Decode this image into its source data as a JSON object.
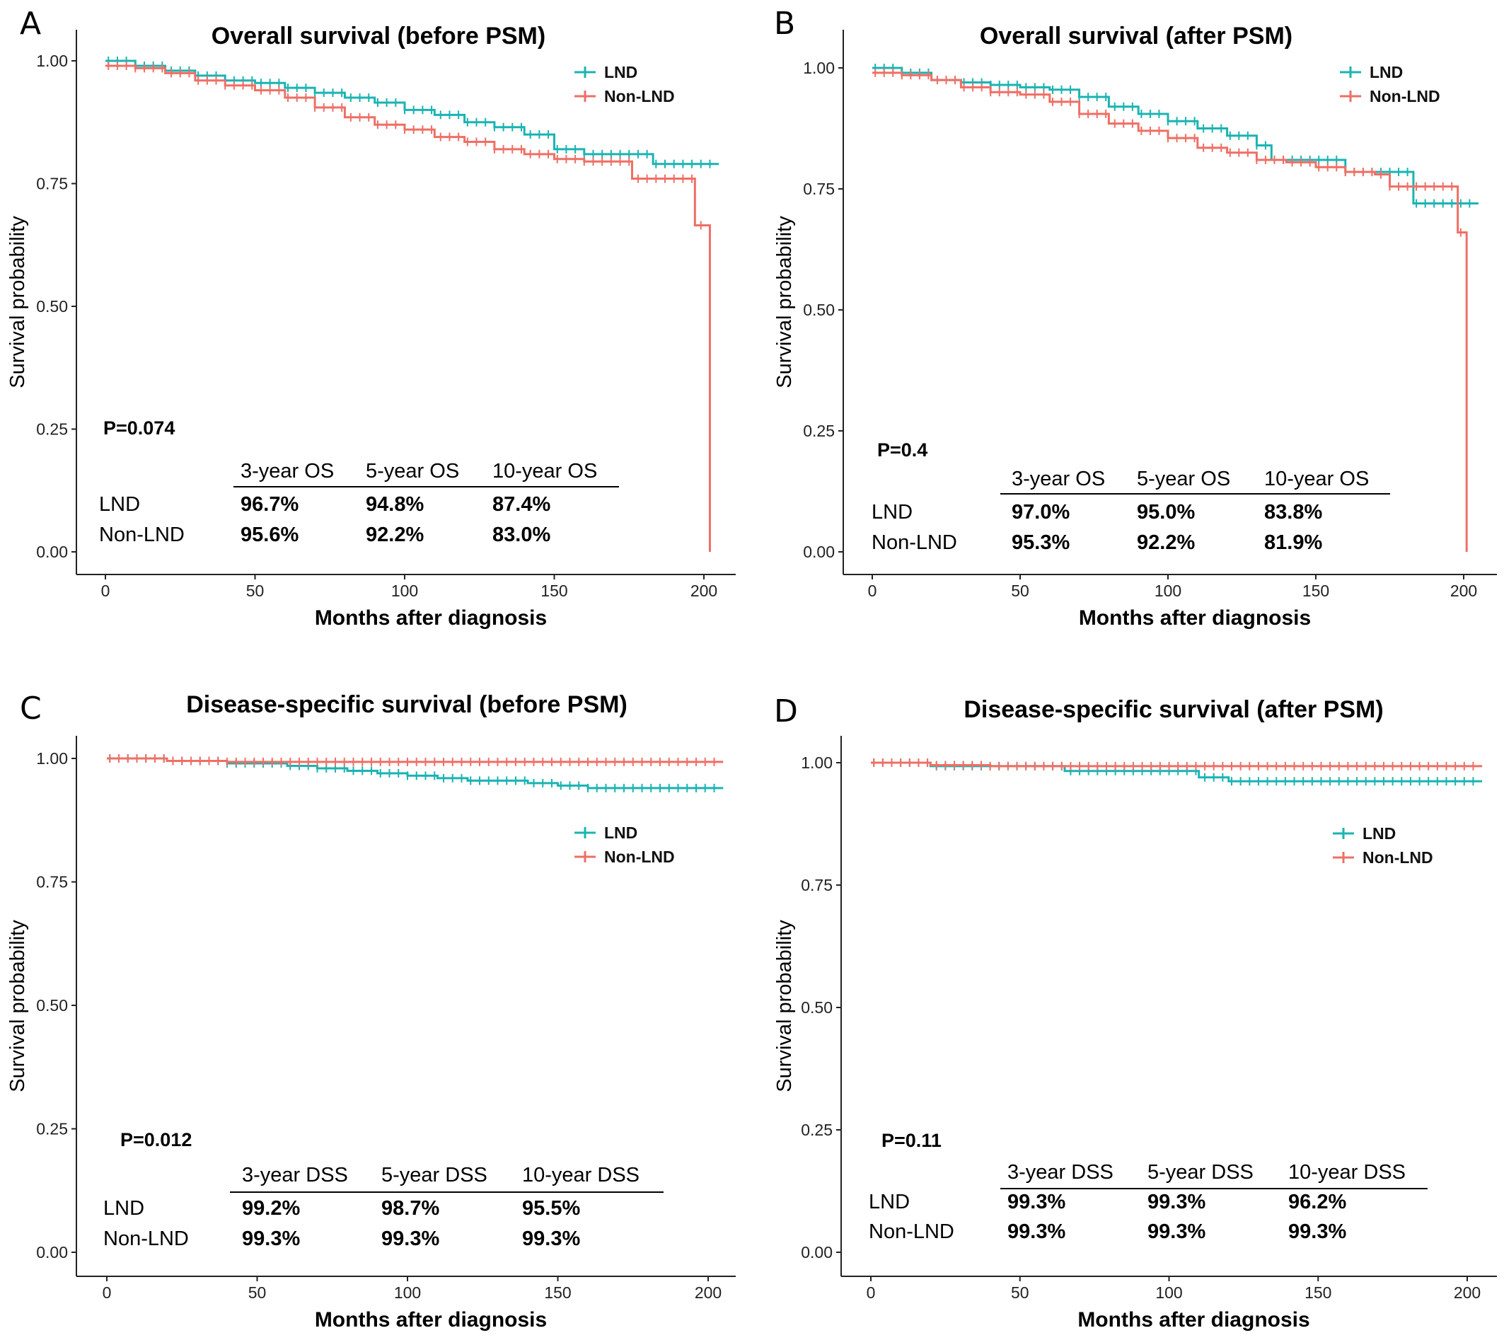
{
  "figure": {
    "panel_count": 4
  },
  "colors": {
    "LND": "#1BB3B3",
    "Non-LND": "#EE6F65"
  },
  "chart_data": [
    {
      "panel": "A",
      "type": "line",
      "title": "Overall survival (before PSM)",
      "xlabel": "Months after diagnosis",
      "ylabel": "Survival probability",
      "xlim": [
        0,
        205
      ],
      "ylim": [
        0,
        1
      ],
      "x_ticks": [
        "0",
        "50",
        "100",
        "150",
        "200"
      ],
      "y_ticks": [
        "0.00",
        "0.25",
        "0.50",
        "0.75",
        "1.00"
      ],
      "legend": [
        "LND",
        "Non-LND"
      ],
      "p_value": "P=0.074",
      "table": {
        "headers": [
          "3-year OS",
          "5-year OS",
          "10-year OS"
        ],
        "rows": [
          {
            "label": "LND",
            "values": [
              "96.7%",
              "94.8%",
              "87.4%"
            ]
          },
          {
            "label": "Non-LND",
            "values": [
              "95.6%",
              "92.2%",
              "83.0%"
            ]
          }
        ]
      },
      "series": [
        {
          "name": "LND",
          "x": [
            0,
            10,
            20,
            30,
            40,
            50,
            60,
            70,
            80,
            90,
            100,
            110,
            120,
            130,
            140,
            150,
            160,
            170,
            183,
            205
          ],
          "y": [
            1.0,
            0.99,
            0.98,
            0.97,
            0.96,
            0.955,
            0.945,
            0.935,
            0.925,
            0.915,
            0.9,
            0.89,
            0.875,
            0.865,
            0.85,
            0.82,
            0.81,
            0.81,
            0.79,
            0.79
          ]
        },
        {
          "name": "Non-LND",
          "x": [
            0,
            10,
            20,
            30,
            40,
            50,
            60,
            70,
            80,
            90,
            100,
            110,
            120,
            130,
            140,
            150,
            160,
            170,
            176,
            190,
            197,
            202,
            202
          ],
          "y": [
            0.99,
            0.985,
            0.975,
            0.96,
            0.95,
            0.94,
            0.925,
            0.905,
            0.885,
            0.87,
            0.86,
            0.845,
            0.835,
            0.82,
            0.81,
            0.8,
            0.795,
            0.795,
            0.76,
            0.76,
            0.665,
            0.665,
            0.0
          ]
        }
      ]
    },
    {
      "panel": "B",
      "type": "line",
      "title": "Overall survival (after PSM)",
      "xlabel": "Months after diagnosis",
      "ylabel": "Survival probability",
      "xlim": [
        0,
        205
      ],
      "ylim": [
        0,
        1
      ],
      "x_ticks": [
        "0",
        "50",
        "100",
        "150",
        "200"
      ],
      "y_ticks": [
        "0.00",
        "0.25",
        "0.50",
        "0.75",
        "1.00"
      ],
      "legend": [
        "LND",
        "Non-LND"
      ],
      "p_value": "P=0.4",
      "table": {
        "headers": [
          "3-year OS",
          "5-year OS",
          "10-year OS"
        ],
        "rows": [
          {
            "label": "LND",
            "values": [
              "97.0%",
              "95.0%",
              "83.8%"
            ]
          },
          {
            "label": "Non-LND",
            "values": [
              "95.3%",
              "92.2%",
              "81.9%"
            ]
          }
        ]
      },
      "series": [
        {
          "name": "LND",
          "x": [
            0,
            10,
            20,
            30,
            40,
            50,
            60,
            70,
            80,
            90,
            100,
            110,
            120,
            130,
            135,
            150,
            160,
            170,
            182,
            183,
            205
          ],
          "y": [
            1.0,
            0.99,
            0.975,
            0.97,
            0.965,
            0.96,
            0.955,
            0.94,
            0.92,
            0.905,
            0.89,
            0.875,
            0.86,
            0.84,
            0.81,
            0.81,
            0.785,
            0.785,
            0.785,
            0.72,
            0.72
          ]
        },
        {
          "name": "Non-LND",
          "x": [
            0,
            10,
            20,
            30,
            40,
            50,
            60,
            70,
            80,
            90,
            100,
            110,
            120,
            130,
            140,
            150,
            160,
            170,
            175,
            190,
            198,
            201,
            201
          ],
          "y": [
            0.99,
            0.985,
            0.975,
            0.96,
            0.95,
            0.945,
            0.93,
            0.905,
            0.885,
            0.87,
            0.855,
            0.835,
            0.825,
            0.81,
            0.805,
            0.795,
            0.785,
            0.78,
            0.755,
            0.755,
            0.66,
            0.66,
            0.0
          ]
        }
      ]
    },
    {
      "panel": "C",
      "type": "line",
      "title": "Disease-specific survival (before PSM)",
      "xlabel": "Months after diagnosis",
      "ylabel": "Survival probability",
      "xlim": [
        0,
        205
      ],
      "ylim": [
        0,
        1
      ],
      "x_ticks": [
        "0",
        "50",
        "100",
        "150",
        "200"
      ],
      "y_ticks": [
        "0.00",
        "0.25",
        "0.50",
        "0.75",
        "1.00"
      ],
      "legend": [
        "LND",
        "Non-LND"
      ],
      "p_value": "P=0.012",
      "table": {
        "headers": [
          "3-year DSS",
          "5-year DSS",
          "10-year DSS"
        ],
        "rows": [
          {
            "label": "LND",
            "values": [
              "99.2%",
              "98.7%",
              "95.5%"
            ]
          },
          {
            "label": "Non-LND",
            "values": [
              "99.3%",
              "99.3%",
              "99.3%"
            ]
          }
        ]
      },
      "series": [
        {
          "name": "LND",
          "x": [
            0,
            20,
            40,
            60,
            70,
            80,
            90,
            100,
            110,
            120,
            130,
            140,
            150,
            160,
            205
          ],
          "y": [
            1.0,
            0.995,
            0.99,
            0.985,
            0.98,
            0.975,
            0.97,
            0.965,
            0.96,
            0.955,
            0.955,
            0.95,
            0.945,
            0.94,
            0.94
          ]
        },
        {
          "name": "Non-LND",
          "x": [
            0,
            20,
            40,
            60,
            205
          ],
          "y": [
            1.0,
            0.995,
            0.993,
            0.993,
            0.993
          ]
        }
      ]
    },
    {
      "panel": "D",
      "type": "line",
      "title": "Disease-specific survival (after PSM)",
      "xlabel": "Months after diagnosis",
      "ylabel": "Survival probability",
      "xlim": [
        0,
        205
      ],
      "ylim": [
        0,
        1
      ],
      "x_ticks": [
        "0",
        "50",
        "100",
        "150",
        "200"
      ],
      "y_ticks": [
        "0.00",
        "0.25",
        "0.50",
        "0.75",
        "1.00"
      ],
      "legend": [
        "LND",
        "Non-LND"
      ],
      "p_value": "P=0.11",
      "table": {
        "headers": [
          "3-year DSS",
          "5-year DSS",
          "10-year DSS"
        ],
        "rows": [
          {
            "label": "LND",
            "values": [
              "99.3%",
              "99.3%",
              "96.2%"
            ]
          },
          {
            "label": "Non-LND",
            "values": [
              "99.3%",
              "99.3%",
              "99.3%"
            ]
          }
        ]
      },
      "series": [
        {
          "name": "LND",
          "x": [
            0,
            20,
            60,
            65,
            110,
            110,
            120,
            205
          ],
          "y": [
            1.0,
            0.993,
            0.993,
            0.983,
            0.983,
            0.97,
            0.962,
            0.962
          ]
        },
        {
          "name": "Non-LND",
          "x": [
            0,
            20,
            40,
            205
          ],
          "y": [
            1.0,
            0.995,
            0.993,
            0.993
          ]
        }
      ]
    }
  ]
}
